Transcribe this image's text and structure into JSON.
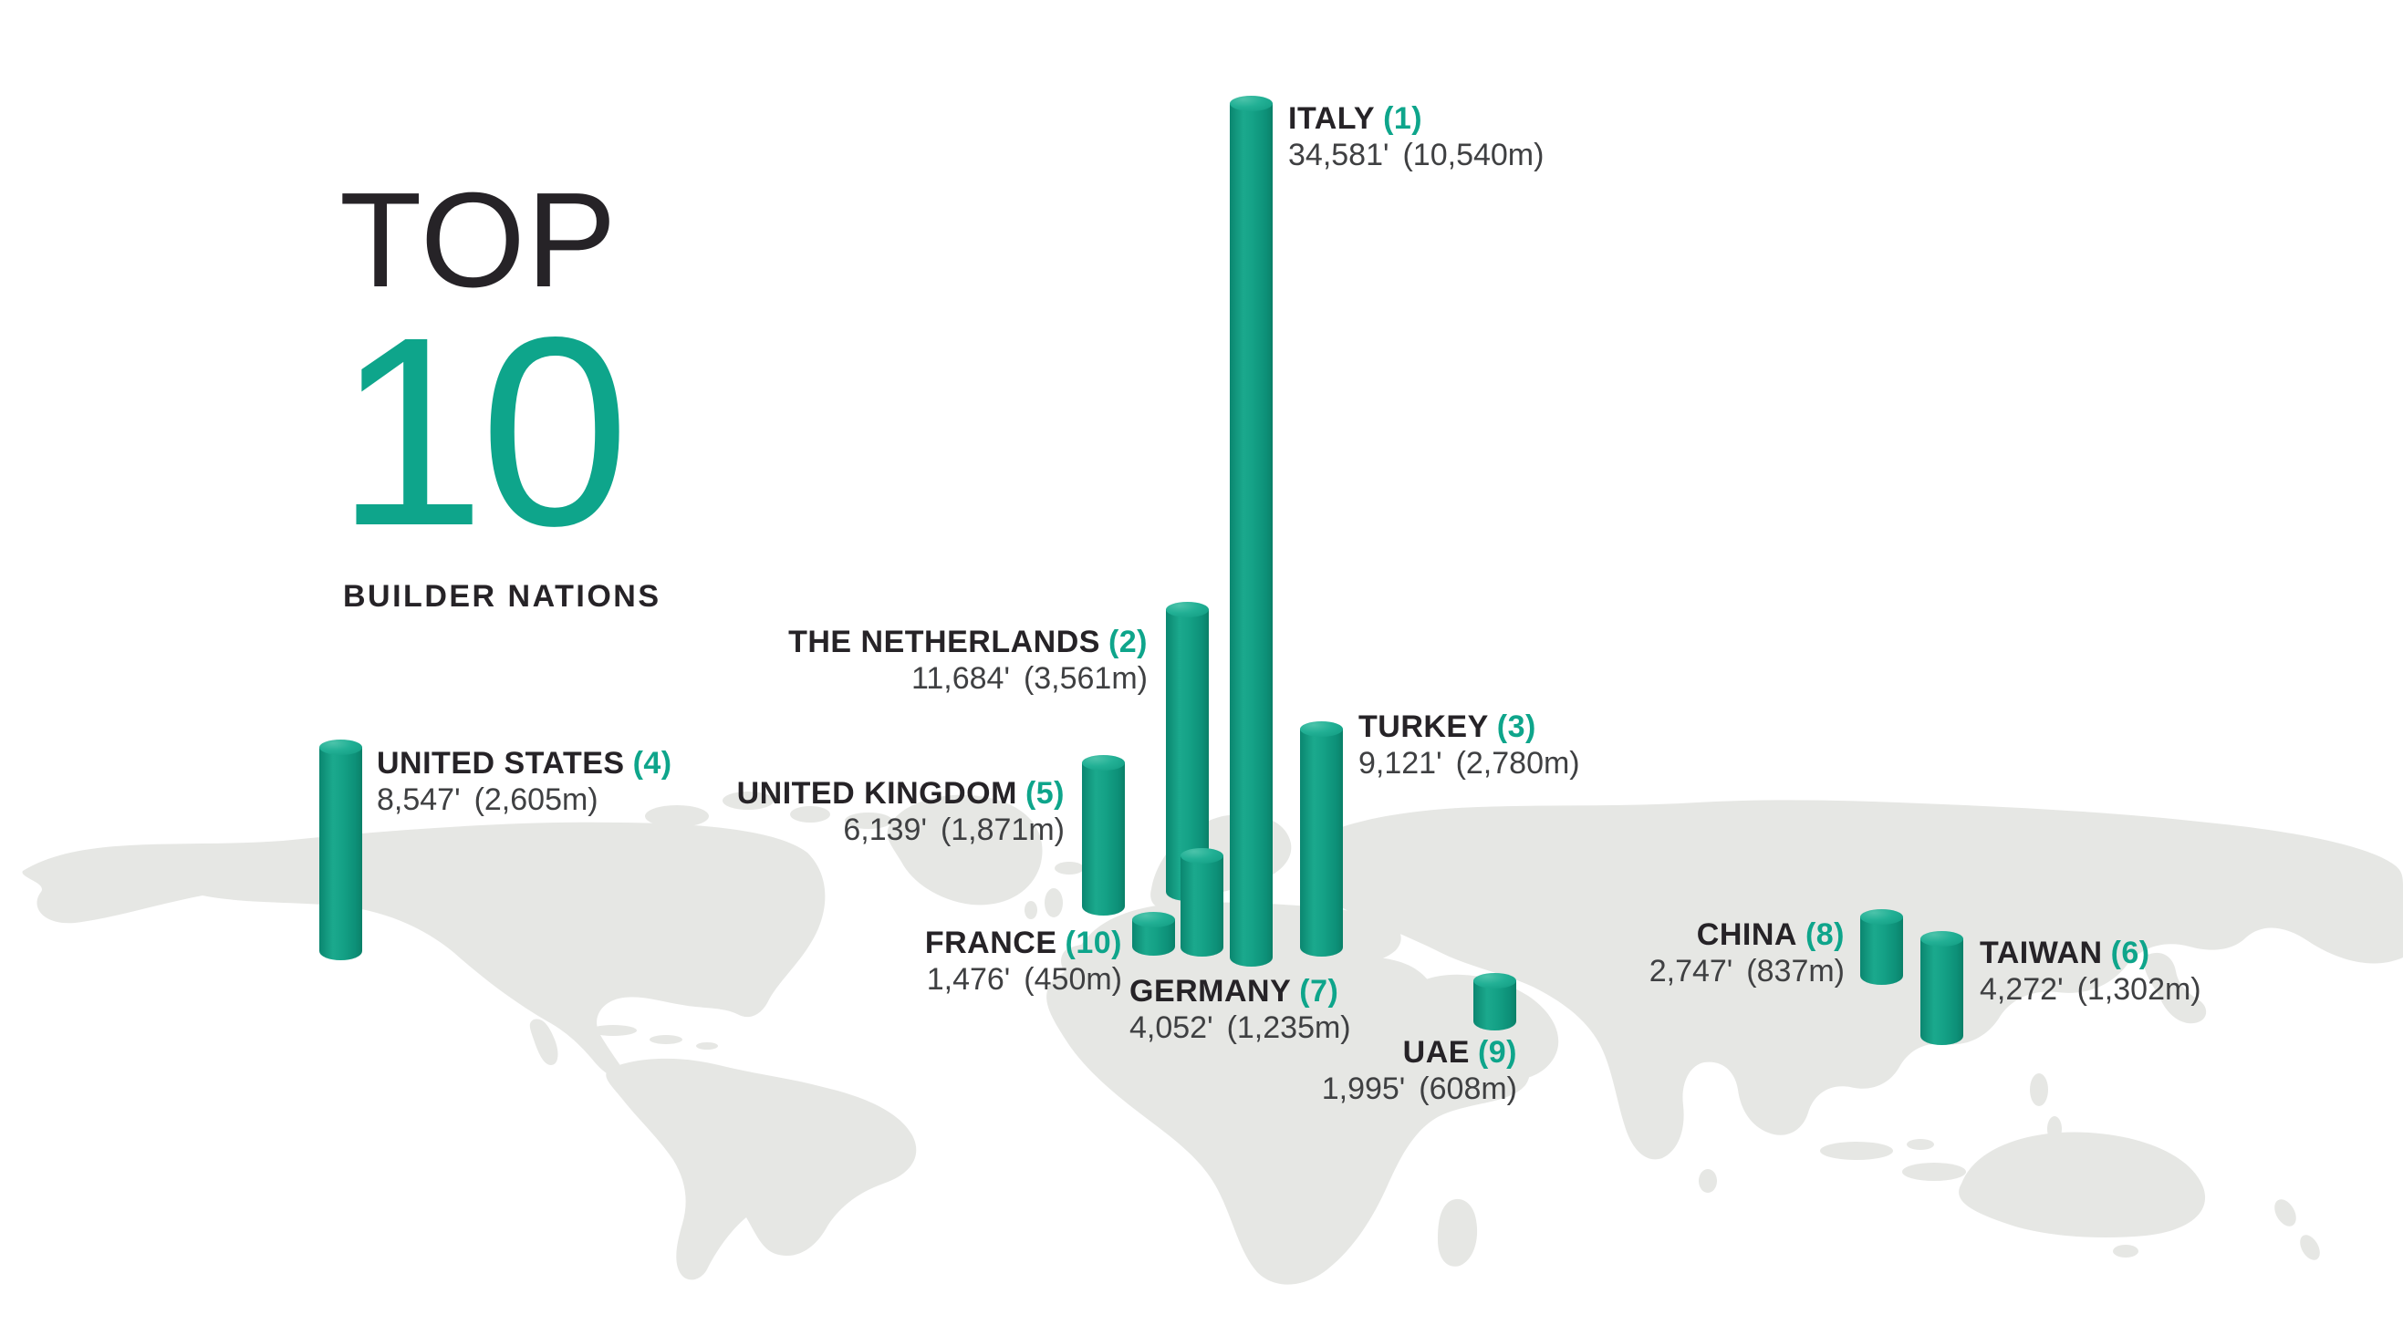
{
  "title": {
    "line1": "TOP",
    "line2": "10",
    "subtitle": "BUILDER NATIONS"
  },
  "colors": {
    "accent_teal": "#0ea58b",
    "bar_teal": "#14a186",
    "map_gray": "#e6e7e4",
    "heading_text": "#262327",
    "value_text": "#3f4042"
  },
  "chart_data": {
    "type": "bar",
    "title": "TOP 10 BUILDER NATIONS",
    "unit_primary": "feet",
    "unit_secondary": "meters",
    "legend_position": "none",
    "bars": [
      {
        "name": "ITALY",
        "rank": 1,
        "rank_label": "(1)",
        "feet": 34581,
        "meters": 10540,
        "feet_label": "34,581'",
        "meters_label": "(10,540m)"
      },
      {
        "name": "THE NETHERLANDS",
        "rank": 2,
        "rank_label": "(2)",
        "feet": 11684,
        "meters": 3561,
        "feet_label": "11,684'",
        "meters_label": "(3,561m)"
      },
      {
        "name": "TURKEY",
        "rank": 3,
        "rank_label": "(3)",
        "feet": 9121,
        "meters": 2780,
        "feet_label": "9,121'",
        "meters_label": "(2,780m)"
      },
      {
        "name": "UNITED STATES",
        "rank": 4,
        "rank_label": "(4)",
        "feet": 8547,
        "meters": 2605,
        "feet_label": "8,547'",
        "meters_label": "(2,605m)"
      },
      {
        "name": "UNITED KINGDOM",
        "rank": 5,
        "rank_label": "(5)",
        "feet": 6139,
        "meters": 1871,
        "feet_label": "6,139'",
        "meters_label": "(1,871m)"
      },
      {
        "name": "TAIWAN",
        "rank": 6,
        "rank_label": "(6)",
        "feet": 4272,
        "meters": 1302,
        "feet_label": "4,272'",
        "meters_label": "(1,302m)"
      },
      {
        "name": "GERMANY",
        "rank": 7,
        "rank_label": "(7)",
        "feet": 4052,
        "meters": 1235,
        "feet_label": "4,052'",
        "meters_label": "(1,235m)"
      },
      {
        "name": "CHINA",
        "rank": 8,
        "rank_label": "(8)",
        "feet": 2747,
        "meters": 837,
        "feet_label": "2,747'",
        "meters_label": "(837m)"
      },
      {
        "name": "UAE",
        "rank": 9,
        "rank_label": "(9)",
        "feet": 1995,
        "meters": 608,
        "feet_label": "1,995'",
        "meters_label": "(608m)"
      },
      {
        "name": "FRANCE",
        "rank": 10,
        "rank_label": "(10)",
        "feet": 1476,
        "meters": 450,
        "feet_label": "1,476'",
        "meters_label": "(450m)"
      }
    ]
  }
}
